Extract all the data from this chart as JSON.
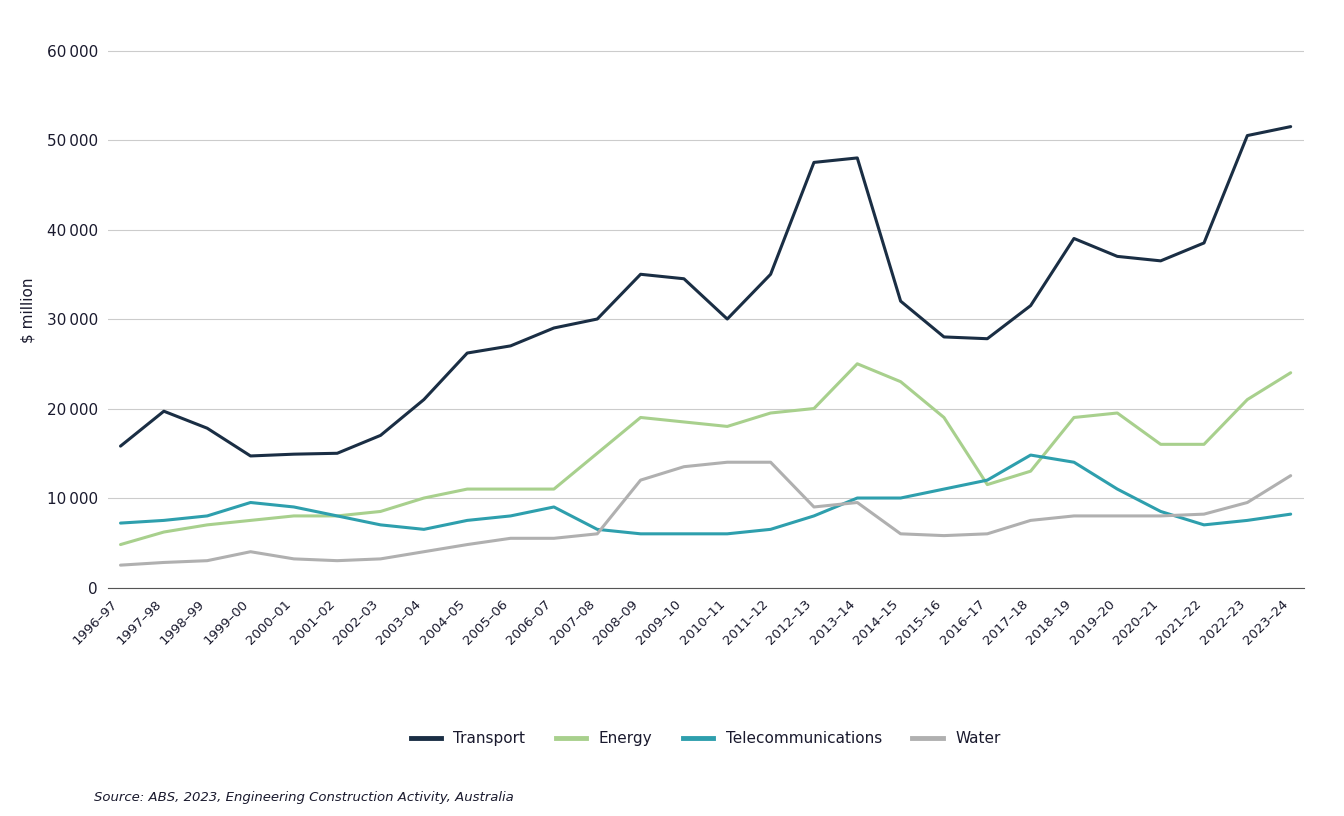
{
  "ylabel": "$ million",
  "source": "Source: ABS, 2023, Engineering Construction Activity, Australia",
  "x_labels": [
    "1996–97",
    "1997–98",
    "1998–99",
    "1999–00",
    "2000–01",
    "2001–02",
    "2002–03",
    "2003–04",
    "2004–05",
    "2005–06",
    "2006–07",
    "2007–08",
    "2008–09",
    "2009–10",
    "2010–11",
    "2011–12",
    "2012–13",
    "2013–14",
    "2014–15",
    "2015–16",
    "2016–17",
    "2017–18",
    "2018–19",
    "2019–20",
    "2020–21",
    "2021–22",
    "2022–23",
    "2023–24"
  ],
  "series": {
    "Transport": {
      "color": "#1a2e44",
      "linewidth": 2.2,
      "values": [
        15800,
        19700,
        17800,
        14700,
        14900,
        15000,
        17000,
        21000,
        26200,
        27000,
        29000,
        30000,
        35000,
        34500,
        30000,
        35000,
        47500,
        48000,
        32000,
        28000,
        27800,
        31500,
        39000,
        37000,
        36500,
        38500,
        50500,
        51500
      ]
    },
    "Energy": {
      "color": "#a8d08d",
      "linewidth": 2.2,
      "values": [
        4800,
        6200,
        7000,
        7500,
        8000,
        8000,
        8500,
        10000,
        11000,
        11000,
        11000,
        15000,
        19000,
        18500,
        18000,
        19500,
        20000,
        25000,
        23000,
        19000,
        11500,
        13000,
        19000,
        19500,
        16000,
        16000,
        21000,
        24000
      ]
    },
    "Telecommunications": {
      "color": "#2e9fad",
      "linewidth": 2.2,
      "values": [
        7200,
        7500,
        8000,
        9500,
        9000,
        8000,
        7000,
        6500,
        7500,
        8000,
        9000,
        6500,
        6000,
        6000,
        6000,
        6500,
        8000,
        10000,
        10000,
        11000,
        12000,
        14800,
        14000,
        11000,
        8500,
        7000,
        7500,
        8200
      ]
    },
    "Water": {
      "color": "#b0b0b0",
      "linewidth": 2.2,
      "values": [
        2500,
        2800,
        3000,
        4000,
        3200,
        3000,
        3200,
        4000,
        4800,
        5500,
        5500,
        6000,
        12000,
        13500,
        14000,
        14000,
        9000,
        9500,
        6000,
        5800,
        6000,
        7500,
        8000,
        8000,
        8000,
        8200,
        9500,
        12500
      ]
    }
  },
  "series_order": [
    "Transport",
    "Energy",
    "Telecommunications",
    "Water"
  ],
  "ylim": [
    0,
    62000
  ],
  "yticks": [
    0,
    10000,
    20000,
    30000,
    40000,
    50000,
    60000
  ],
  "background_color": "#ffffff",
  "grid_color": "#cccccc",
  "text_color": "#1a1a2e"
}
